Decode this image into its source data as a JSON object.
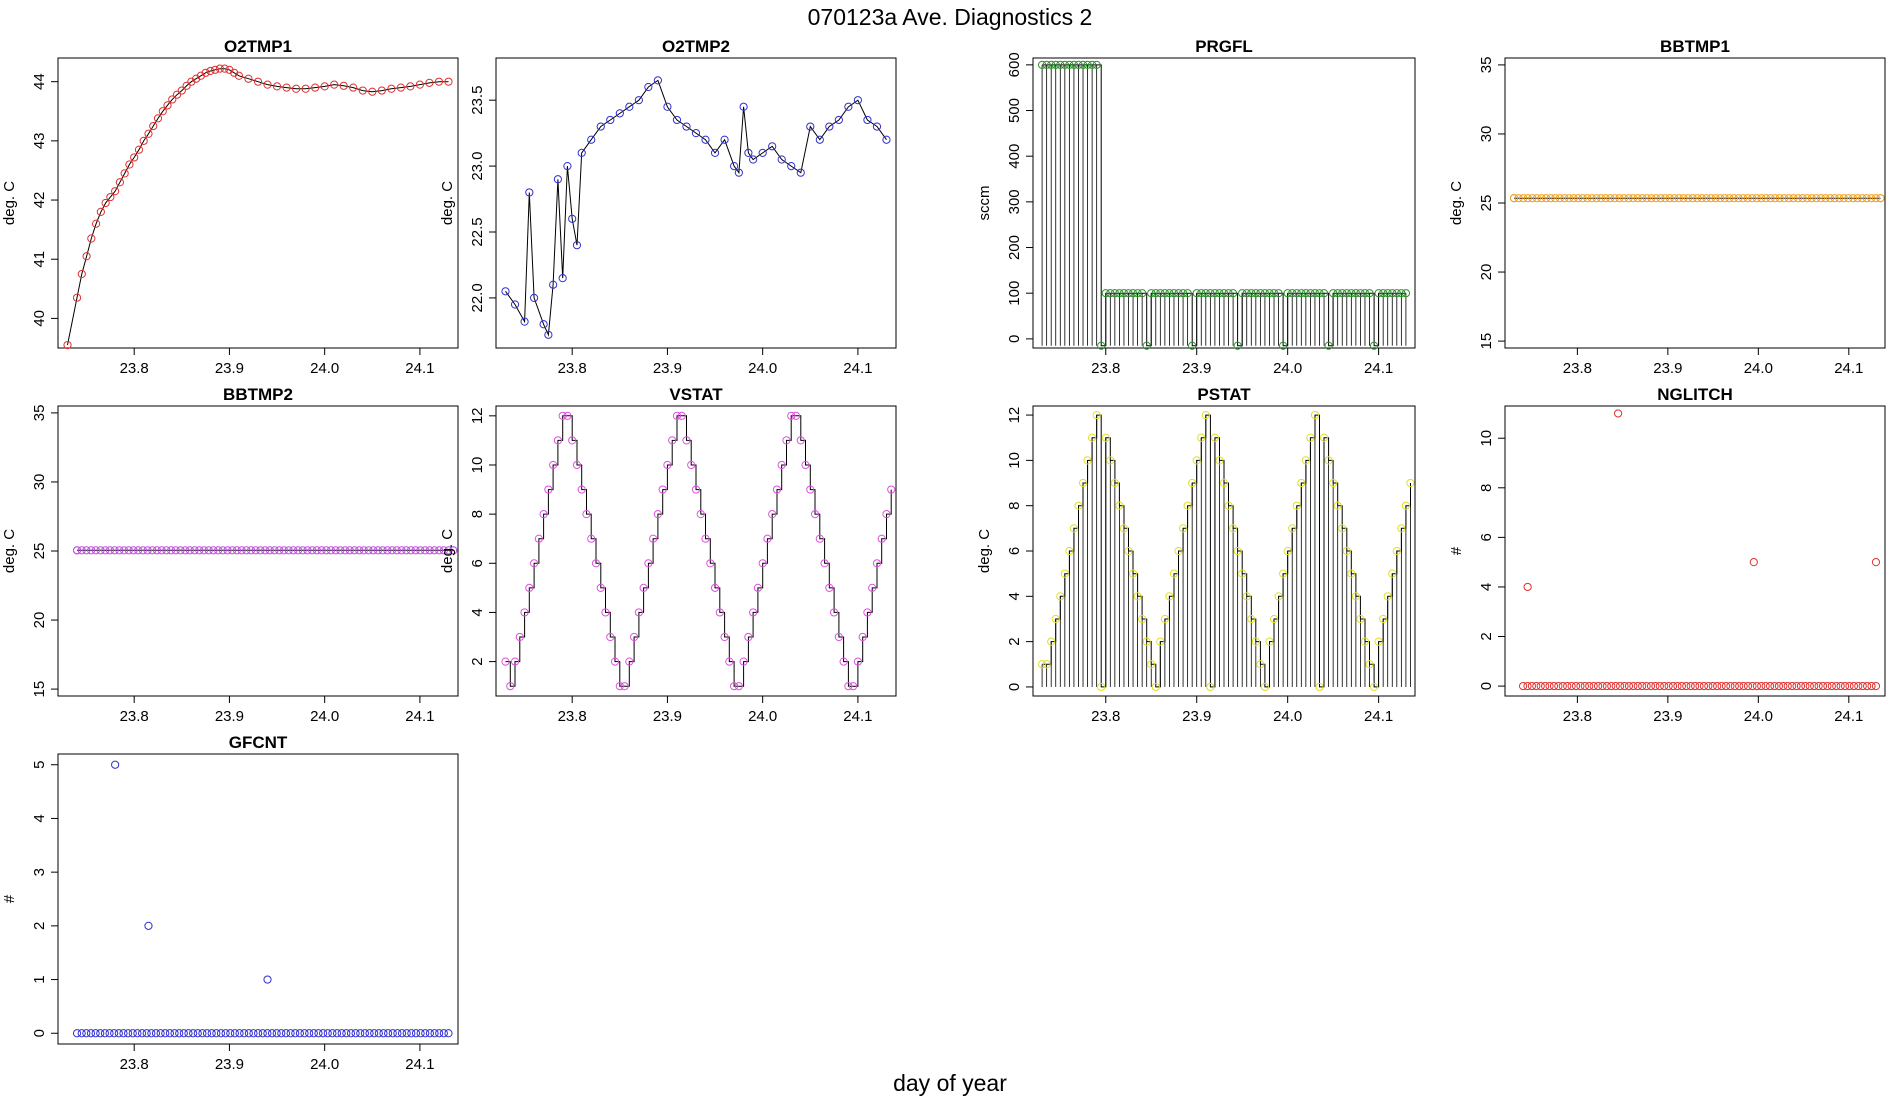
{
  "figure": {
    "title": "070123a   Ave. Diagnostics 2",
    "xlabel": "day of year"
  },
  "chart_data": [
    {
      "type": "line",
      "title": "O2TMP1",
      "ylabel": "deg. C",
      "xlim": [
        23.72,
        24.14
      ],
      "ylim": [
        39.5,
        44.4
      ],
      "xticks": [
        "23.8",
        "23.9",
        "24.0",
        "24.1"
      ],
      "yticks": [
        "40",
        "41",
        "42",
        "43",
        "44"
      ],
      "marker_color": "#e03030",
      "series": [
        {
          "x": [
            23.73,
            23.74,
            23.745,
            23.75,
            23.755,
            23.76,
            23.765,
            23.77,
            23.775,
            23.78,
            23.785,
            23.79,
            23.795,
            23.8,
            23.805,
            23.81,
            23.815,
            23.82,
            23.825,
            23.83,
            23.835,
            23.84,
            23.845,
            23.85,
            23.855,
            23.86,
            23.865,
            23.87,
            23.875,
            23.88,
            23.885,
            23.89,
            23.895,
            23.9,
            23.905,
            23.91,
            23.92,
            23.93,
            23.94,
            23.95,
            23.96,
            23.97,
            23.98,
            23.99,
            24.0,
            24.01,
            24.02,
            24.03,
            24.04,
            24.05,
            24.06,
            24.07,
            24.08,
            24.09,
            24.1,
            24.11,
            24.12,
            24.13
          ],
          "y": [
            39.55,
            40.35,
            40.75,
            41.05,
            41.35,
            41.6,
            41.8,
            41.95,
            42.05,
            42.15,
            42.3,
            42.45,
            42.6,
            42.72,
            42.85,
            43.0,
            43.12,
            43.25,
            43.38,
            43.5,
            43.6,
            43.7,
            43.78,
            43.85,
            43.93,
            44.0,
            44.05,
            44.1,
            44.15,
            44.18,
            44.2,
            44.22,
            44.22,
            44.2,
            44.15,
            44.1,
            44.05,
            44.0,
            43.95,
            43.92,
            43.9,
            43.88,
            43.88,
            43.9,
            43.92,
            43.95,
            43.93,
            43.9,
            43.85,
            43.83,
            43.85,
            43.88,
            43.9,
            43.92,
            43.95,
            43.98,
            44.0,
            44.0
          ]
        }
      ]
    },
    {
      "type": "line",
      "title": "O2TMP2",
      "ylabel": "deg. C",
      "xlim": [
        23.72,
        24.14
      ],
      "ylim": [
        21.62,
        23.82
      ],
      "xticks": [
        "23.8",
        "23.9",
        "24.0",
        "24.1"
      ],
      "yticks": [
        "22.0",
        "22.5",
        "23.0",
        "23.5"
      ],
      "marker_color": "#3030d0",
      "series": [
        {
          "x": [
            23.73,
            23.74,
            23.75,
            23.755,
            23.76,
            23.77,
            23.775,
            23.78,
            23.785,
            23.79,
            23.795,
            23.8,
            23.805,
            23.81,
            23.82,
            23.83,
            23.84,
            23.85,
            23.86,
            23.87,
            23.88,
            23.89,
            23.9,
            23.91,
            23.92,
            23.93,
            23.94,
            23.95,
            23.96,
            23.97,
            23.975,
            23.98,
            23.985,
            23.99,
            24.0,
            24.01,
            24.02,
            24.03,
            24.04,
            24.05,
            24.06,
            24.07,
            24.08,
            24.09,
            24.1,
            24.11,
            24.12,
            24.13
          ],
          "y": [
            22.05,
            21.95,
            21.82,
            22.8,
            22.0,
            21.8,
            21.72,
            22.1,
            22.9,
            22.15,
            23.0,
            22.6,
            22.4,
            23.1,
            23.2,
            23.3,
            23.35,
            23.4,
            23.45,
            23.5,
            23.6,
            23.65,
            23.45,
            23.35,
            23.3,
            23.25,
            23.2,
            23.1,
            23.2,
            23.0,
            22.95,
            23.45,
            23.1,
            23.05,
            23.1,
            23.15,
            23.05,
            23.0,
            22.95,
            23.3,
            23.2,
            23.3,
            23.35,
            23.45,
            23.5,
            23.35,
            23.3,
            23.2
          ]
        }
      ]
    },
    {
      "type": "line",
      "title": "PRGFL",
      "ylabel": "sccm",
      "xlim": [
        23.72,
        24.14
      ],
      "ylim": [
        -20,
        615
      ],
      "xticks": [
        "23.8",
        "23.9",
        "24.0",
        "24.1"
      ],
      "yticks": [
        "0",
        "100",
        "200",
        "300",
        "400",
        "500",
        "600"
      ],
      "marker_color": "#309030",
      "series": [
        {
          "x": [
            23.73,
            23.735,
            23.74,
            23.745,
            23.75,
            23.755,
            23.76,
            23.765,
            23.77,
            23.775,
            23.78,
            23.785,
            23.79,
            23.795,
            23.8,
            23.805,
            23.81,
            23.815,
            23.82,
            23.825,
            23.83,
            23.835,
            23.84,
            23.845,
            23.85,
            23.855,
            23.86,
            23.865,
            23.87,
            23.875,
            23.88,
            23.885,
            23.89,
            23.895,
            23.9,
            23.905,
            23.91,
            23.915,
            23.92,
            23.925,
            23.93,
            23.935,
            23.94,
            23.945,
            23.95,
            23.955,
            23.96,
            23.965,
            23.97,
            23.975,
            23.98,
            23.985,
            23.99,
            23.995,
            24.0,
            24.005,
            24.01,
            24.015,
            24.02,
            24.025,
            24.03,
            24.035,
            24.04,
            24.045,
            24.05,
            24.055,
            24.06,
            24.065,
            24.07,
            24.075,
            24.08,
            24.085,
            24.09,
            24.095,
            24.1,
            24.105,
            24.11,
            24.115,
            24.12,
            24.125,
            24.13
          ],
          "y": [
            600,
            600,
            600,
            600,
            600,
            600,
            600,
            600,
            600,
            600,
            600,
            600,
            600,
            -15,
            100,
            100,
            100,
            100,
            100,
            100,
            100,
            100,
            100,
            -15,
            100,
            100,
            100,
            100,
            100,
            100,
            100,
            100,
            100,
            -15,
            100,
            100,
            100,
            100,
            100,
            100,
            100,
            100,
            100,
            -15,
            100,
            100,
            100,
            100,
            100,
            100,
            100,
            100,
            100,
            -15,
            100,
            100,
            100,
            100,
            100,
            100,
            100,
            100,
            100,
            -15,
            100,
            100,
            100,
            100,
            100,
            100,
            100,
            100,
            100,
            -15,
            100,
            100,
            100,
            100,
            100,
            100,
            100
          ]
        }
      ]
    },
    {
      "type": "line",
      "title": "BBTMP1",
      "ylabel": "deg. C",
      "xlim": [
        23.72,
        24.14
      ],
      "ylim": [
        14.5,
        35.5
      ],
      "xticks": [
        "23.8",
        "23.9",
        "24.0",
        "24.1"
      ],
      "yticks": [
        "15",
        "20",
        "25",
        "30",
        "35"
      ],
      "marker_color": "#f0a020",
      "series": [
        {
          "x": [
            23.73,
            24.135
          ],
          "y": [
            25.35,
            25.35
          ]
        }
      ]
    },
    {
      "type": "line",
      "title": "BBTMP2",
      "ylabel": "deg. C",
      "xlim": [
        23.72,
        24.14
      ],
      "ylim": [
        14.5,
        35.5
      ],
      "xticks": [
        "23.8",
        "23.9",
        "24.0",
        "24.1"
      ],
      "yticks": [
        "15",
        "20",
        "25",
        "30",
        "35"
      ],
      "marker_color": "#c050e0",
      "series": [
        {
          "x": [
            23.74,
            24.135
          ],
          "y": [
            25.05,
            25.05
          ]
        }
      ]
    },
    {
      "type": "line",
      "title": "VSTAT",
      "ylabel": "deg. C",
      "xlim": [
        23.72,
        24.14
      ],
      "ylim": [
        0.6,
        12.4
      ],
      "xticks": [
        "23.8",
        "23.9",
        "24.0",
        "24.1"
      ],
      "yticks": [
        "2",
        "4",
        "6",
        "8",
        "10",
        "12"
      ],
      "marker_color": "#e050e0",
      "series": [
        {
          "x": [
            23.73,
            23.735,
            23.74,
            23.745,
            23.75,
            23.755,
            23.76,
            23.765,
            23.77,
            23.775,
            23.78,
            23.785,
            23.79,
            23.795,
            23.8,
            23.805,
            23.81,
            23.815,
            23.82,
            23.825,
            23.83,
            23.835,
            23.84,
            23.845,
            23.85,
            23.855,
            23.86,
            23.865,
            23.87,
            23.875,
            23.88,
            23.885,
            23.89,
            23.895,
            23.9,
            23.905,
            23.91,
            23.915,
            23.92,
            23.925,
            23.93,
            23.935,
            23.94,
            23.945,
            23.95,
            23.955,
            23.96,
            23.965,
            23.97,
            23.975,
            23.98,
            23.985,
            23.99,
            23.995,
            24.0,
            24.005,
            24.01,
            24.015,
            24.02,
            24.025,
            24.03,
            24.035,
            24.04,
            24.045,
            24.05,
            24.055,
            24.06,
            24.065,
            24.07,
            24.075,
            24.08,
            24.085,
            24.09,
            24.095,
            24.1,
            24.105,
            24.11,
            24.115,
            24.12,
            24.125,
            24.13,
            24.135
          ],
          "y": [
            2,
            1,
            2,
            3,
            4,
            5,
            6,
            7,
            8,
            9,
            10,
            11,
            12,
            12,
            11,
            10,
            9,
            8,
            7,
            6,
            5,
            4,
            3,
            2,
            1,
            1,
            2,
            3,
            4,
            5,
            6,
            7,
            8,
            9,
            10,
            11,
            12,
            12,
            11,
            10,
            9,
            8,
            7,
            6,
            5,
            4,
            3,
            2,
            1,
            1,
            2,
            3,
            4,
            5,
            6,
            7,
            8,
            9,
            10,
            11,
            12,
            12,
            11,
            10,
            9,
            8,
            7,
            6,
            5,
            4,
            3,
            2,
            1,
            1,
            2,
            3,
            4,
            5,
            6,
            7,
            8,
            9
          ]
        }
      ]
    },
    {
      "type": "line",
      "title": "PSTAT",
      "ylabel": "deg. C",
      "xlim": [
        23.72,
        24.14
      ],
      "ylim": [
        -0.4,
        12.4
      ],
      "xticks": [
        "23.8",
        "23.9",
        "24.0",
        "24.1"
      ],
      "yticks": [
        "0",
        "2",
        "4",
        "6",
        "8",
        "10",
        "12"
      ],
      "marker_color": "#e0e020",
      "series": [
        {
          "x": [
            23.73,
            23.735,
            23.74,
            23.745,
            23.75,
            23.755,
            23.76,
            23.765,
            23.77,
            23.775,
            23.78,
            23.785,
            23.79,
            23.795,
            23.8,
            23.805,
            23.81,
            23.815,
            23.82,
            23.825,
            23.83,
            23.835,
            23.84,
            23.845,
            23.85,
            23.855,
            23.86,
            23.865,
            23.87,
            23.875,
            23.88,
            23.885,
            23.89,
            23.895,
            23.9,
            23.905,
            23.91,
            23.915,
            23.92,
            23.925,
            23.93,
            23.935,
            23.94,
            23.945,
            23.95,
            23.955,
            23.96,
            23.965,
            23.97,
            23.975,
            23.98,
            23.985,
            23.99,
            23.995,
            24.0,
            24.005,
            24.01,
            24.015,
            24.02,
            24.025,
            24.03,
            24.035,
            24.04,
            24.045,
            24.05,
            24.055,
            24.06,
            24.065,
            24.07,
            24.075,
            24.08,
            24.085,
            24.09,
            24.095,
            24.1,
            24.105,
            24.11,
            24.115,
            24.12,
            24.125,
            24.13,
            24.135
          ],
          "y": [
            1,
            1,
            2,
            3,
            4,
            5,
            6,
            7,
            8,
            9,
            10,
            11,
            12,
            0,
            11,
            10,
            9,
            8,
            7,
            6,
            5,
            4,
            3,
            2,
            1,
            0,
            2,
            3,
            4,
            5,
            6,
            7,
            8,
            9,
            10,
            11,
            12,
            0,
            11,
            10,
            9,
            8,
            7,
            6,
            5,
            4,
            3,
            2,
            1,
            0,
            2,
            3,
            4,
            5,
            6,
            7,
            8,
            9,
            10,
            11,
            12,
            0,
            11,
            10,
            9,
            8,
            7,
            6,
            5,
            4,
            3,
            2,
            1,
            0,
            2,
            3,
            4,
            5,
            6,
            7,
            8,
            9
          ]
        }
      ]
    },
    {
      "type": "scatter",
      "title": "NGLITCH",
      "ylabel": "#",
      "xlim": [
        23.72,
        24.14
      ],
      "ylim": [
        -0.4,
        11.3
      ],
      "xticks": [
        "23.8",
        "23.9",
        "24.0",
        "24.1"
      ],
      "yticks": [
        "0",
        "2",
        "4",
        "6",
        "8",
        "10"
      ],
      "marker_color": "#e03030",
      "series": [
        {
          "x": [
            23.745,
            23.845,
            23.995,
            24.13
          ],
          "y": [
            4,
            11,
            5,
            5
          ]
        }
      ],
      "baseline": 0
    },
    {
      "type": "scatter",
      "title": "GFCNT",
      "ylabel": "#",
      "xlim": [
        23.72,
        24.14
      ],
      "ylim": [
        -0.2,
        5.2
      ],
      "xticks": [
        "23.8",
        "23.9",
        "24.0",
        "24.1"
      ],
      "yticks": [
        "0",
        "1",
        "2",
        "3",
        "4",
        "5"
      ],
      "marker_color": "#3030d0",
      "series": [
        {
          "x": [
            23.78,
            23.815,
            23.94
          ],
          "y": [
            5,
            2,
            1
          ]
        }
      ],
      "baseline": 0
    }
  ]
}
